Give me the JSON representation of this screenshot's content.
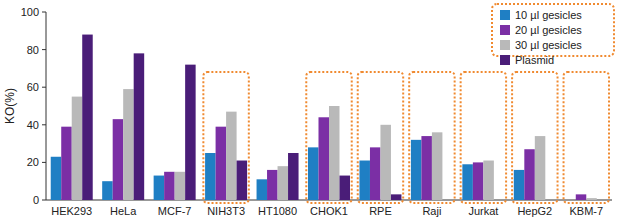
{
  "chart_data": {
    "type": "bar",
    "y_label": "KO(%)",
    "categories": [
      "HEK293",
      "HeLa",
      "MCF-7",
      "NIH3T3",
      "HT1080",
      "CHOK1",
      "RPE",
      "Raji",
      "Jurkat",
      "HepG2",
      "KBM-7"
    ],
    "series": [
      {
        "name": "10 µl gesicles",
        "color": "#1f7fc4",
        "values": [
          23,
          10,
          13,
          25,
          11,
          28,
          21,
          32,
          19,
          16,
          null
        ]
      },
      {
        "name": "20 µl gesicles",
        "color": "#7b2fa5",
        "values": [
          39,
          43,
          15,
          39,
          16,
          44,
          28,
          34,
          20,
          27,
          3
        ]
      },
      {
        "name": "30 µl gesicles",
        "color": "#b9b9b9",
        "values": [
          55,
          59,
          15,
          47,
          18,
          50,
          40,
          36,
          21,
          34,
          1
        ]
      },
      {
        "name": "Plasmid",
        "color": "#4a1d78",
        "values": [
          88,
          78,
          72,
          21,
          25,
          13,
          3,
          null,
          null,
          null,
          null
        ]
      }
    ],
    "ylim": [
      0,
      100
    ],
    "yticks": [
      0,
      20,
      40,
      60,
      80,
      100
    ],
    "grid": false,
    "legend": "top-right"
  }
}
